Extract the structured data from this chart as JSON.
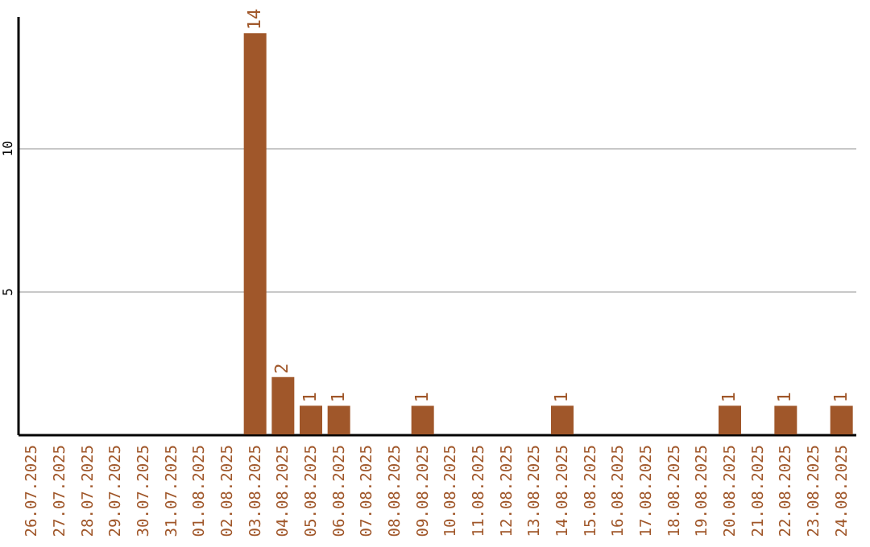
{
  "chart_data": {
    "type": "bar",
    "categories": [
      "26.07.2025",
      "27.07.2025",
      "28.07.2025",
      "29.07.2025",
      "30.07.2025",
      "31.07.2025",
      "01.08.2025",
      "02.08.2025",
      "03.08.2025",
      "04.08.2025",
      "05.08.2025",
      "06.08.2025",
      "07.08.2025",
      "08.08.2025",
      "09.08.2025",
      "10.08.2025",
      "11.08.2025",
      "12.08.2025",
      "13.08.2025",
      "14.08.2025",
      "15.08.2025",
      "16.08.2025",
      "17.08.2025",
      "18.08.2025",
      "19.08.2025",
      "20.08.2025",
      "21.08.2025",
      "22.08.2025",
      "23.08.2025",
      "24.08.2025"
    ],
    "values": [
      0,
      0,
      0,
      0,
      0,
      0,
      0,
      0,
      14,
      2,
      1,
      1,
      0,
      0,
      1,
      0,
      0,
      0,
      0,
      1,
      0,
      0,
      0,
      0,
      0,
      1,
      0,
      1,
      0,
      1
    ],
    "value_labels": [
      null,
      null,
      null,
      null,
      null,
      null,
      null,
      null,
      "14",
      "2",
      "1",
      "1",
      null,
      null,
      "1",
      null,
      null,
      null,
      null,
      "1",
      null,
      null,
      null,
      null,
      null,
      "1",
      null,
      "1",
      null,
      "1"
    ],
    "color": "#a0572a",
    "ylim": [
      0,
      14.6
    ],
    "yticks": [
      5,
      10
    ],
    "grid": "y"
  }
}
